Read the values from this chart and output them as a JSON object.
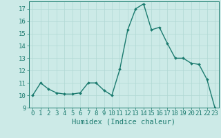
{
  "xlabel": "Humidex (Indice chaleur)",
  "x_values": [
    0,
    1,
    2,
    3,
    4,
    5,
    6,
    7,
    8,
    9,
    10,
    11,
    12,
    13,
    14,
    15,
    16,
    17,
    18,
    19,
    20,
    21,
    22,
    23
  ],
  "y_values": [
    10.0,
    11.0,
    10.5,
    10.2,
    10.1,
    10.1,
    10.2,
    11.0,
    11.0,
    10.4,
    10.0,
    12.1,
    15.3,
    17.0,
    17.4,
    15.3,
    15.5,
    14.2,
    13.0,
    13.0,
    12.6,
    12.5,
    11.3,
    9.0
  ],
  "ylim": [
    9,
    17.6
  ],
  "xlim": [
    -0.5,
    23.5
  ],
  "yticks": [
    9,
    10,
    11,
    12,
    13,
    14,
    15,
    16,
    17
  ],
  "xticks": [
    0,
    1,
    2,
    3,
    4,
    5,
    6,
    7,
    8,
    9,
    10,
    11,
    12,
    13,
    14,
    15,
    16,
    17,
    18,
    19,
    20,
    21,
    22,
    23
  ],
  "line_color": "#1a7a6e",
  "marker": "D",
  "marker_size": 2.0,
  "line_width": 1.0,
  "bg_color": "#cceae7",
  "grid_color": "#b0d8d4",
  "tick_label_fontsize": 6.5,
  "xlabel_fontsize": 7.5,
  "spine_color": "#1a7a6e"
}
